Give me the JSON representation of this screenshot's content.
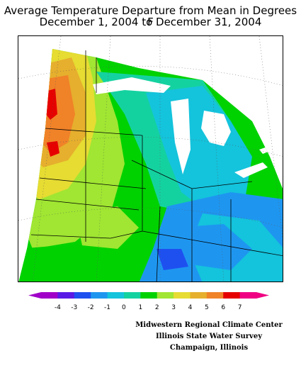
{
  "title": {
    "line1": "Average Temperature Departure from Mean in Degrees F",
    "line2": "December 1, 2004 to December 31, 2004"
  },
  "legend": {
    "labels": [
      "-4",
      "-3",
      "-2",
      "-1",
      "0",
      "1",
      "2",
      "3",
      "4",
      "5",
      "6",
      "7"
    ],
    "colors": [
      "#a000c8",
      "#5a1ae6",
      "#1e50f0",
      "#1e96f0",
      "#14c3dc",
      "#14d2a0",
      "#00d200",
      "#a0e632",
      "#e6dc32",
      "#e6af2d",
      "#f08228",
      "#e60000",
      "#f00082"
    ]
  },
  "credits": [
    "Midwestern Regional Climate Center",
    "Illinois State Water Survey",
    "Champaign, Illinois"
  ]
}
